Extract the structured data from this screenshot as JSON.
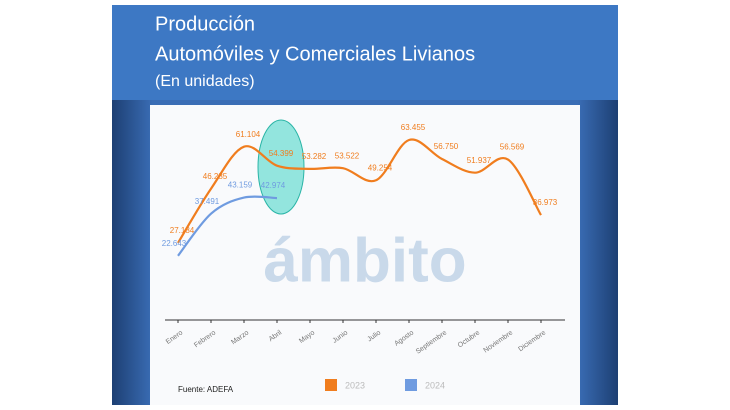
{
  "chart_data": {
    "type": "line",
    "title": [
      "Producción",
      "Automóviles y Comerciales Livianos",
      "(En unidades)"
    ],
    "categories": [
      "Enero",
      "Febrero",
      "Marzo",
      "Abril",
      "Mayo",
      "Junio",
      "Julio",
      "Agosto",
      "Septiembre",
      "Octubre",
      "Noviembre",
      "Diciembre"
    ],
    "series": [
      {
        "name": "2023",
        "color": "#f07d1e",
        "values": [
          27184,
          46285,
          61104,
          54399,
          53282,
          53522,
          49254,
          63455,
          56750,
          51937,
          56569,
          36973
        ],
        "value_labels": [
          "27.184",
          "46.285",
          "61.104",
          "54.399",
          "53.282",
          "53.522",
          "49.254",
          "63.455",
          "56.750",
          "51.937",
          "56.569",
          "36.973"
        ]
      },
      {
        "name": "2024",
        "color": "#6f9be0",
        "values": [
          22643,
          37491,
          43159,
          42974,
          null,
          null,
          null,
          null,
          null,
          null,
          null,
          null
        ],
        "value_labels": [
          "22.643",
          "37.491",
          "43.159",
          "42.974",
          null,
          null,
          null,
          null,
          null,
          null,
          null,
          null
        ]
      }
    ],
    "watermark": "ámbito",
    "source": "Fuente: ADEFA",
    "legend": "bottom"
  }
}
